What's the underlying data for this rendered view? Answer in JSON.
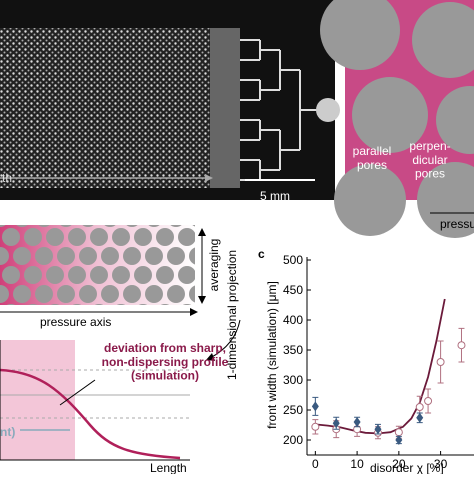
{
  "figure": {
    "scale_bar": "5 mm",
    "length_cut": "th",
    "parallel_pores": "parallel\npores",
    "perpendicular_pores": "perpen-\ndicular\npores",
    "pressure_cut": "pressure",
    "averaging": "averaging",
    "projection": "1-dimensional projection",
    "pressure_axis": "pressure axis",
    "deviation": "deviation from sharp,\nnon-dispersing profile\n(simulation)",
    "nt_cut": "nt)",
    "length": "Length"
  },
  "chart_data": {
    "type": "line",
    "panel_label": "c",
    "ylabel": "front width (simulation) [μm]",
    "xlabel": "disorder  χ [%]",
    "xlim": [
      -2,
      38
    ],
    "xticks": [
      0,
      10,
      20,
      30
    ],
    "ylim": [
      175,
      505
    ],
    "yticks": [
      200,
      250,
      300,
      350,
      400,
      450,
      500
    ],
    "series": [
      {
        "kind": "line",
        "color": "#6b1a3a",
        "x": [
          0,
          3,
          6,
          9,
          12,
          15,
          18,
          21,
          23,
          25,
          27,
          29,
          31
        ],
        "values": [
          226,
          224,
          221,
          216,
          212,
          211,
          213,
          222,
          236,
          262,
          305,
          365,
          435
        ]
      },
      {
        "kind": "circle",
        "color": "#b07080",
        "x": [
          0,
          5,
          10,
          15,
          20,
          25,
          27,
          30,
          35
        ],
        "values": [
          222,
          218,
          218,
          212,
          213,
          255,
          265,
          330,
          358
        ],
        "errors": [
          12,
          14,
          12,
          10,
          10,
          18,
          20,
          35,
          28
        ]
      },
      {
        "kind": "diamond",
        "color": "#3a5a80",
        "x": [
          0,
          5,
          10,
          15,
          20,
          25
        ],
        "values": [
          256,
          228,
          230,
          218,
          200,
          237
        ],
        "errors": [
          15,
          10,
          8,
          8,
          6,
          8
        ]
      }
    ]
  }
}
